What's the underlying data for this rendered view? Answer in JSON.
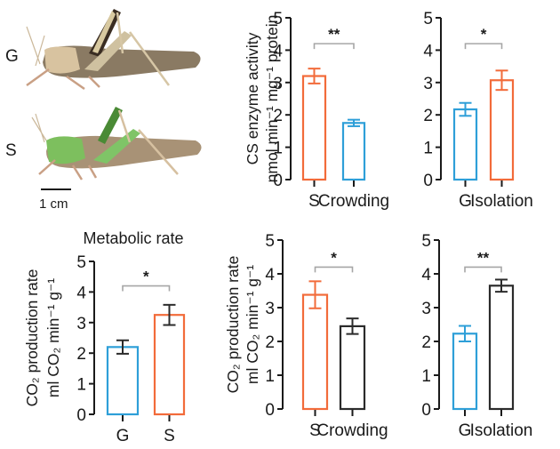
{
  "colors": {
    "G": "#2e9fd8",
    "S": "#f26b3a",
    "treated": "#2b2b2b",
    "axis": "#1a1a1a",
    "bracket": "#a6a6a6"
  },
  "photo_panel": {
    "labels": [
      "G",
      "S"
    ],
    "scale_bar_label": "1 cm"
  },
  "chart_data": [
    {
      "id": "cs-crowding",
      "type": "bar",
      "title": "",
      "ylabel_line1": "CS enzyme activity",
      "ylabel_line2": "nmol min⁻¹ mg⁻¹ protein",
      "ylim": [
        0,
        5
      ],
      "yticks": [
        "0",
        "1",
        "2",
        "3",
        "4",
        "5"
      ],
      "categories": [
        "S",
        "Crowding"
      ],
      "values": [
        3.2,
        1.75
      ],
      "errors": [
        0.23,
        0.1
      ],
      "bar_colors": [
        "S",
        "G"
      ],
      "significance": "**"
    },
    {
      "id": "cs-isolation",
      "type": "bar",
      "title": "",
      "ylim": [
        0,
        5
      ],
      "yticks": [
        "0",
        "1",
        "2",
        "3",
        "4",
        "5"
      ],
      "categories": [
        "G",
        "Isolation"
      ],
      "values": [
        2.17,
        3.07
      ],
      "errors": [
        0.2,
        0.3
      ],
      "bar_colors": [
        "G",
        "S"
      ],
      "significance": "*"
    },
    {
      "id": "metabolic-rate",
      "type": "bar",
      "title": "Metabolic rate",
      "ylabel_line1": "CO₂ production rate",
      "ylabel_line2": "ml CO₂ min⁻¹ g⁻¹",
      "ylim": [
        0,
        5
      ],
      "yticks": [
        "0",
        "1",
        "2",
        "3",
        "4",
        "5"
      ],
      "categories": [
        "G",
        "S"
      ],
      "values": [
        2.2,
        3.25
      ],
      "errors": [
        0.22,
        0.33
      ],
      "bar_colors": [
        "G",
        "S"
      ],
      "error_color": "treated",
      "significance": "*"
    },
    {
      "id": "co2-crowding",
      "type": "bar",
      "title": "",
      "ylabel_line1": "CO₂ production rate",
      "ylabel_line2": "ml CO₂ min⁻¹ g⁻¹",
      "ylim": [
        0,
        5
      ],
      "yticks": [
        "0",
        "1",
        "2",
        "3",
        "4",
        "5"
      ],
      "categories": [
        "S",
        "Crowding"
      ],
      "values": [
        3.38,
        2.45
      ],
      "errors": [
        0.4,
        0.23
      ],
      "bar_colors": [
        "S",
        "treated"
      ],
      "significance": "*"
    },
    {
      "id": "co2-isolation",
      "type": "bar",
      "title": "",
      "ylim": [
        0,
        5
      ],
      "yticks": [
        "0",
        "1",
        "2",
        "3",
        "4",
        "5"
      ],
      "categories": [
        "G",
        "Isolation"
      ],
      "values": [
        2.23,
        3.65
      ],
      "errors": [
        0.23,
        0.18
      ],
      "bar_colors": [
        "G",
        "treated"
      ],
      "significance": "**"
    }
  ]
}
